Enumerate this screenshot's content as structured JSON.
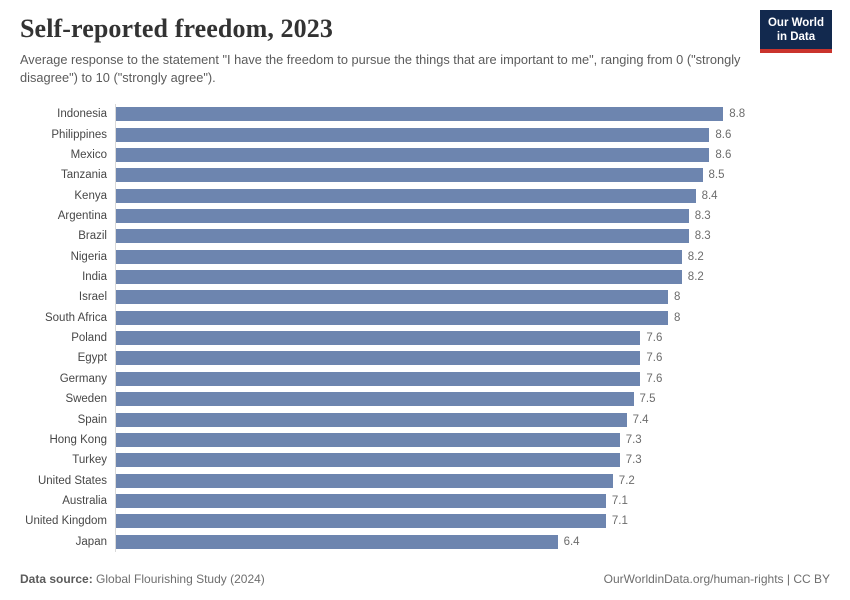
{
  "header": {
    "title": "Self-reported freedom, 2023",
    "subtitle": "Average response to the statement \"I have the freedom to pursue the things that are important to me\", ranging from 0 (\"strongly disagree\") to 10 (\"strongly agree\").",
    "logo_line1": "Our World",
    "logo_line2": "in Data"
  },
  "chart_data": {
    "type": "bar",
    "orientation": "horizontal",
    "title": "Self-reported freedom, 2023",
    "xlabel": "",
    "ylabel": "",
    "xlim": [
      0,
      10
    ],
    "grid": false,
    "legend_position": "none",
    "bar_color": "#6d85af",
    "categories": [
      "Indonesia",
      "Philippines",
      "Mexico",
      "Tanzania",
      "Kenya",
      "Argentina",
      "Brazil",
      "Nigeria",
      "India",
      "Israel",
      "South Africa",
      "Poland",
      "Egypt",
      "Germany",
      "Sweden",
      "Spain",
      "Hong Kong",
      "Turkey",
      "United States",
      "Australia",
      "United Kingdom",
      "Japan"
    ],
    "values": [
      8.8,
      8.6,
      8.6,
      8.5,
      8.4,
      8.3,
      8.3,
      8.2,
      8.2,
      8,
      8,
      7.6,
      7.6,
      7.6,
      7.5,
      7.4,
      7.3,
      7.3,
      7.2,
      7.1,
      7.1,
      6.4
    ],
    "value_labels": [
      "8.8",
      "8.6",
      "8.6",
      "8.5",
      "8.4",
      "8.3",
      "8.3",
      "8.2",
      "8.2",
      "8",
      "8",
      "7.6",
      "7.6",
      "7.6",
      "7.5",
      "7.4",
      "7.3",
      "7.3",
      "7.2",
      "7.1",
      "7.1",
      "6.4"
    ]
  },
  "footer": {
    "datasource_label": "Data source:",
    "datasource_value": " Global Flourishing Study (2024)",
    "attribution_url": "OurWorldinData.org/human-rights",
    "license": " | CC BY"
  },
  "colors": {
    "bar": "#6d85af",
    "title_text": "#333333",
    "subtitle_text": "#5b5b5b",
    "label_text": "#474747",
    "value_text": "#6c6c6c",
    "axis_line": "#d9d9d9",
    "logo_background": "#12294e",
    "logo_stripe": "#ca342d"
  }
}
